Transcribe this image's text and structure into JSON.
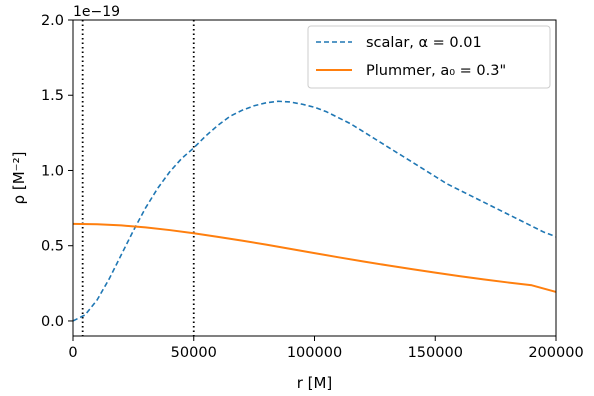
{
  "chart_data": {
    "type": "line",
    "xlabel": "r [M]",
    "ylabel": "ρ [M⁻²]",
    "offset_label": "1e−19",
    "xlim": [
      0,
      200000
    ],
    "ylim": [
      -0.1,
      2.0
    ],
    "x_ticks": [
      0,
      50000,
      100000,
      150000,
      200000
    ],
    "x_tick_labels": [
      "0",
      "50000",
      "100000",
      "150000",
      "200000"
    ],
    "y_ticks": [
      0.0,
      0.5,
      1.0,
      1.5,
      2.0
    ],
    "y_tick_labels": [
      "0.0",
      "0.5",
      "1.0",
      "1.5",
      "2.0"
    ],
    "grid": false,
    "legend_position": "top-right",
    "vlines": [
      4000,
      50000
    ],
    "series": [
      {
        "name": "scalar, α = 0.01",
        "color": "#1f77b4",
        "style": "dashed",
        "x": [
          0,
          5000,
          10000,
          15000,
          20000,
          25000,
          30000,
          35000,
          40000,
          45000,
          50000,
          55000,
          60000,
          65000,
          70000,
          75000,
          80000,
          85000,
          90000,
          95000,
          100000,
          105000,
          110000,
          115000,
          120000,
          125000,
          130000,
          135000,
          140000,
          145000,
          150000,
          155000,
          160000,
          165000,
          170000,
          175000,
          180000,
          185000,
          190000,
          195000,
          200000
        ],
        "y": [
          0.0,
          0.04,
          0.14,
          0.28,
          0.44,
          0.6,
          0.75,
          0.88,
          0.99,
          1.08,
          1.15,
          1.23,
          1.3,
          1.36,
          1.4,
          1.43,
          1.45,
          1.46,
          1.455,
          1.44,
          1.42,
          1.39,
          1.35,
          1.31,
          1.26,
          1.21,
          1.16,
          1.11,
          1.06,
          1.01,
          0.96,
          0.91,
          0.87,
          0.83,
          0.79,
          0.75,
          0.71,
          0.67,
          0.63,
          0.59,
          0.56
        ]
      },
      {
        "name": "Plummer, a₀ = 0.3\"",
        "color": "#ff7f0e",
        "style": "solid",
        "x": [
          0,
          10000,
          20000,
          30000,
          40000,
          50000,
          60000,
          70000,
          80000,
          90000,
          100000,
          110000,
          120000,
          130000,
          140000,
          150000,
          160000,
          170000,
          180000,
          190000,
          200000
        ],
        "y": [
          0.645,
          0.643,
          0.635,
          0.622,
          0.604,
          0.583,
          0.559,
          0.534,
          0.507,
          0.479,
          0.451,
          0.423,
          0.396,
          0.37,
          0.345,
          0.321,
          0.298,
          0.276,
          0.256,
          0.237,
          0.193
        ]
      }
    ]
  }
}
